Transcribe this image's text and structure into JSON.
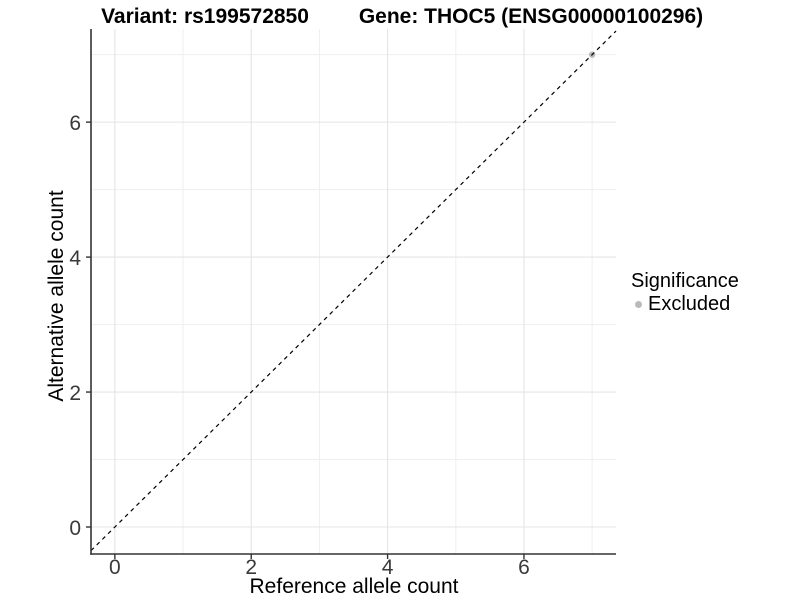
{
  "chart_data": {
    "type": "scatter",
    "title_left": "Variant: rs199572850",
    "title_right": "Gene: THOC5 (ENSG00000100296)",
    "xlabel": "Reference allele count",
    "ylabel": "Alternative allele count",
    "xlim": [
      -0.35,
      7.35
    ],
    "ylim": [
      -0.4,
      7.38
    ],
    "x_major_ticks": [
      0,
      2,
      4,
      6
    ],
    "y_major_ticks": [
      0,
      2,
      4,
      6
    ],
    "x_minor_ticks": [
      1,
      3,
      5,
      7
    ],
    "y_minor_ticks": [
      1,
      3,
      5,
      7
    ],
    "grid": true,
    "legend_position": "right",
    "legend_title": "Significance",
    "series": [
      {
        "name": "Excluded",
        "color": "#bababa",
        "points": [
          [
            7,
            7
          ]
        ]
      }
    ],
    "reference_line": {
      "slope": 1,
      "intercept": 0,
      "style": "dashed",
      "color": "#000000"
    }
  },
  "style_colors": {
    "background": "#ffffff",
    "grid_major": "#e4e4e4",
    "grid_minor": "#efefef",
    "axis_line": "#333333",
    "tick_text": "#3a3a3a",
    "point_gray": "#bababa"
  }
}
